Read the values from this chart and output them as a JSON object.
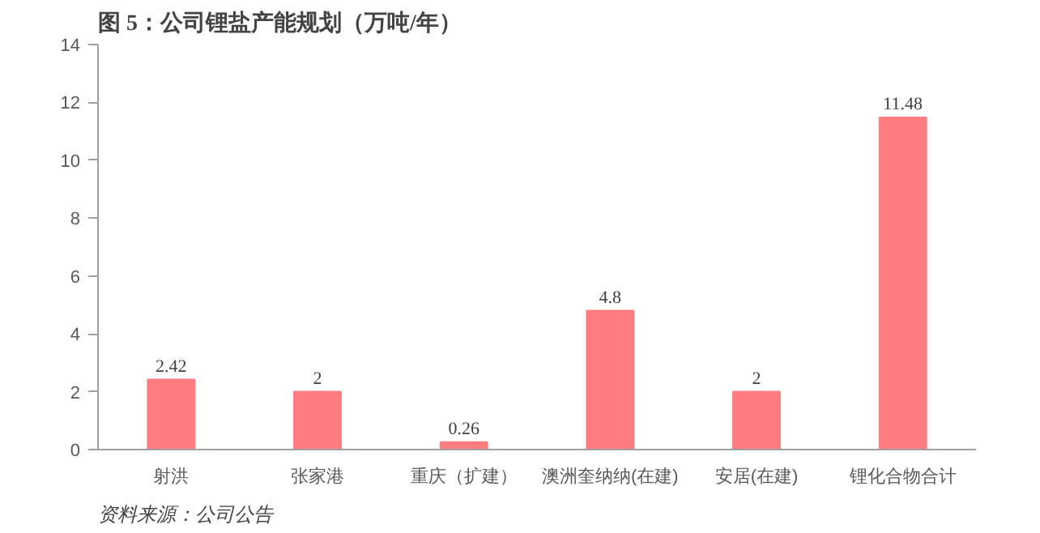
{
  "chart_data": {
    "type": "bar",
    "title": "图 5：公司锂盐产能规划（万吨/年）",
    "categories": [
      "射洪",
      "张家港",
      "重庆（扩建）",
      "澳洲奎纳纳(在建)",
      "安居(在建)",
      "锂化合物合计"
    ],
    "values": [
      2.42,
      2,
      0.26,
      4.8,
      2,
      11.48
    ],
    "value_labels": [
      "2.42",
      "2",
      "0.26",
      "4.8",
      "2",
      "11.48"
    ],
    "color": "#ff7c80",
    "ylim": [
      0,
      14
    ],
    "yticks": [
      0,
      2,
      4,
      6,
      8,
      10,
      12,
      14
    ],
    "grid": false,
    "annotations": [
      "资料来源：公司公告"
    ]
  }
}
